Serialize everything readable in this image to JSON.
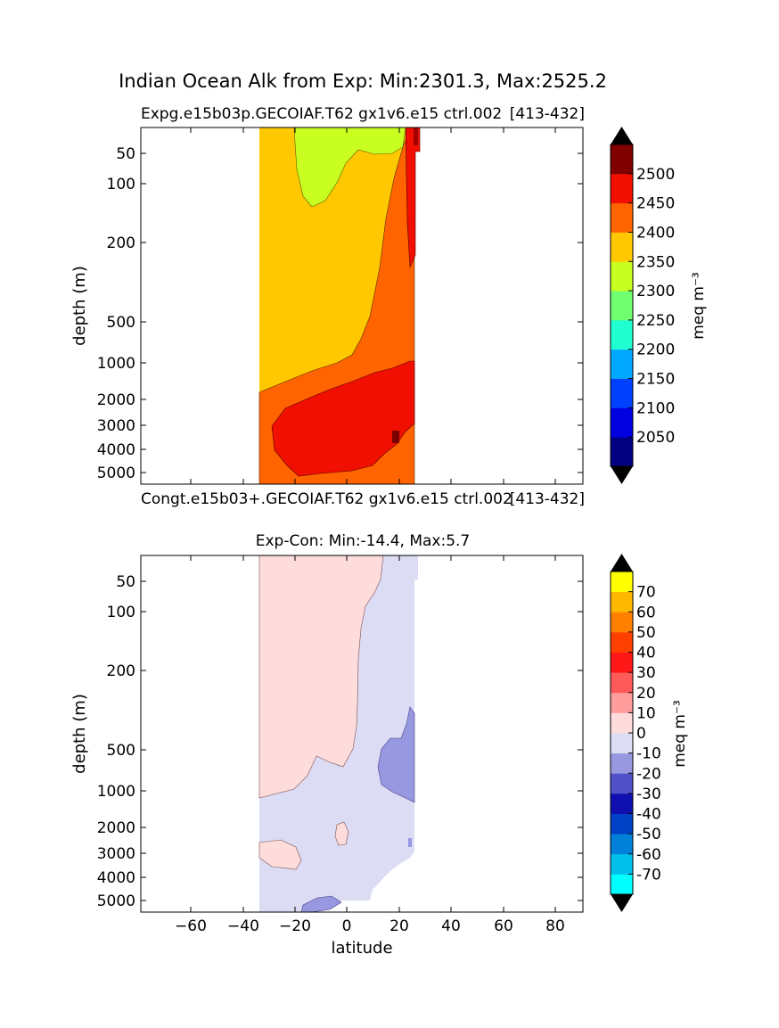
{
  "figure_title": "Indian Ocean Alk from Exp: Min:2301.3, Max:2525.2",
  "top_panel": {
    "title_left": "Expg.e15b03p.GECOIAF.T62 gx1v6.e15 ctrl.002",
    "title_right": "[413-432]",
    "ylabel": "depth (m)"
  },
  "control_label_left": "Congt.e15b03+.GECOIAF.T62 gx1v6.e15 ctrl.002",
  "control_label_right": "[413-432]",
  "bottom_panel": {
    "title": "Exp-Con: Min:-14.4, Max:5.7",
    "ylabel": "depth (m)",
    "xlabel": "latitude"
  },
  "colorbar_top": {
    "label": "meq m⁻³",
    "tick_labels": [
      "2050",
      "2100",
      "2150",
      "2200",
      "2250",
      "2300",
      "2350",
      "2400",
      "2450",
      "2500"
    ],
    "bounds": [
      2025,
      2050,
      2075,
      2100,
      2125,
      2150,
      2175,
      2200,
      2225,
      2250,
      2275,
      2300,
      2325,
      2350,
      2375,
      2400,
      2425,
      2450,
      2475,
      2500,
      2525
    ],
    "colors": [
      "#000080",
      "#0000e0",
      "#0040ff",
      "#00a8ff",
      "#20ffd0",
      "#70ff70",
      "#c8ff20",
      "#ffc800",
      "#ff6400",
      "#f00f00",
      "#800000"
    ],
    "over_color": "#000000",
    "under_color": "#000000"
  },
  "colorbar_bottom": {
    "label": "meq m⁻³",
    "tick_labels": [
      "-70",
      "-60",
      "-50",
      "-40",
      "-30",
      "-20",
      "-10",
      "0",
      "10",
      "20",
      "30",
      "40",
      "50",
      "60",
      "70"
    ],
    "colors": [
      "#00ffff",
      "#00c0ec",
      "#0080d8",
      "#0040c4",
      "#1010b0",
      "#5050c8",
      "#9898e0",
      "#dcdcf4",
      "#ffdcdc",
      "#ff9c9c",
      "#ff5a5a",
      "#ff1818",
      "#ff4000",
      "#ff8000",
      "#ffb800",
      "#ffff00"
    ],
    "over_color": "#000000",
    "under_color": "#000000"
  },
  "chart_data": [
    {
      "type": "heatmap",
      "title": "Expg.e15b03p.GECOIAF.T62 gx1v6.e15 ctrl.002 [413-432]",
      "xlabel": "",
      "ylabel": "depth (m)",
      "x_ticks": [
        -60,
        -40,
        -20,
        0,
        20,
        40,
        60,
        80
      ],
      "xlim": [
        -80,
        90
      ],
      "y_ticks": [
        50,
        100,
        200,
        500,
        1000,
        2000,
        3000,
        4000,
        5000
      ],
      "y_scale": "depth-stretched (inverted)",
      "levels": [
        2050,
        2100,
        2150,
        2200,
        2250,
        2300,
        2350,
        2400,
        2450,
        2500
      ],
      "value_range": {
        "min": 2301.3,
        "max": 2525.2
      },
      "regions": [
        {
          "value_class": "2325-2375",
          "description": "surface lens 20S-15N above ~120 m"
        },
        {
          "value_class": "2375-2425",
          "description": "upper ocean above ~1500 m south, shoaling northward"
        },
        {
          "value_class": "2425-2475",
          "description": "intermediate and bottom margin"
        },
        {
          "value_class": "2475-2525",
          "description": "deep core 30S-25N, 2000-5000 m; northern edge"
        },
        {
          "value_class": ">2525",
          "description": "small patch near 17N, 3500 m"
        }
      ]
    },
    {
      "type": "heatmap",
      "title": "Exp-Con: Min:-14.4, Max:5.7",
      "xlabel": "latitude",
      "ylabel": "depth (m)",
      "x_ticks": [
        -60,
        -40,
        -20,
        0,
        20,
        40,
        60,
        80
      ],
      "xlim": [
        -80,
        90
      ],
      "y_ticks": [
        50,
        100,
        200,
        500,
        1000,
        2000,
        3000,
        4000,
        5000
      ],
      "levels": [
        -70,
        -60,
        -50,
        -40,
        -30,
        -20,
        -10,
        0,
        10,
        20,
        30,
        40,
        50,
        60,
        70
      ],
      "value_range": {
        "min": -14.4,
        "max": 5.7
      },
      "regions": [
        {
          "value_class": "0 to 10",
          "description": "upper ocean south of ~12N above ~1000 m; patch near 2500 m 35S-20S"
        },
        {
          "value_class": "-10 to 0",
          "description": "most of section below 1000 m and north of ~10N"
        },
        {
          "value_class": "-20 to -10",
          "description": "patches 12N-25N at 300-1500 m and near 5000 m 12S"
        }
      ]
    }
  ]
}
